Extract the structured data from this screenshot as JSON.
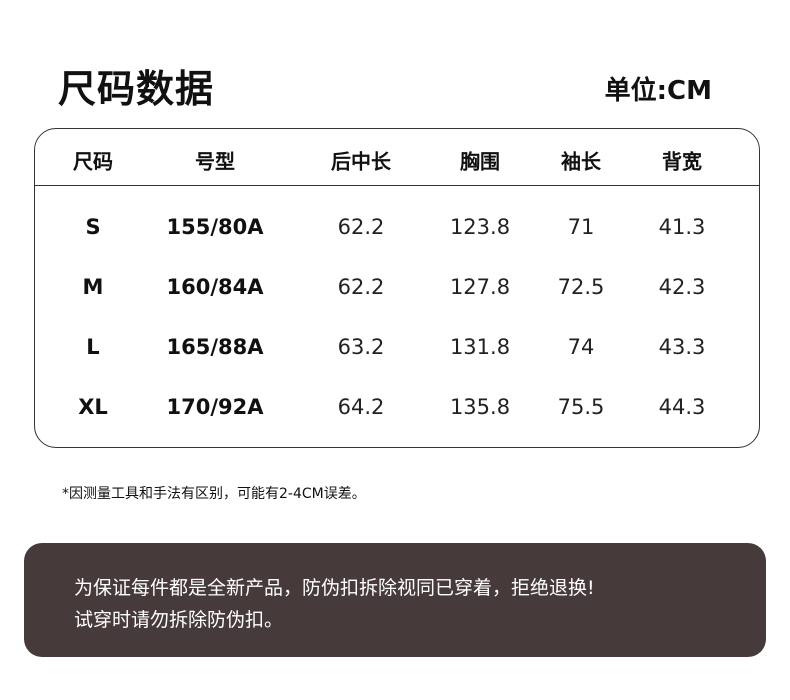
{
  "title": "尺码数据",
  "unit": "单位:CM",
  "table": {
    "headers": [
      "尺码",
      "号型",
      "后中长",
      "胸围",
      "袖长",
      "背宽"
    ],
    "rows": [
      [
        "S",
        "155/80A",
        "62.2",
        "123.8",
        "71",
        "41.3"
      ],
      [
        "M",
        "160/84A",
        "62.2",
        "127.8",
        "72.5",
        "42.3"
      ],
      [
        "L",
        "165/88A",
        "63.2",
        "131.8",
        "74",
        "43.3"
      ],
      [
        "XL",
        "170/92A",
        "64.2",
        "135.8",
        "75.5",
        "44.3"
      ]
    ]
  },
  "note": "*因测量工具和手法有区别，可能有2-4CM误差。",
  "notice": {
    "line1": "为保证每件都是全新产品，防伪扣拆除视同已穿着，拒绝退换!",
    "line2": "试穿时请勿拆除防伪扣。",
    "background": "#473a3b"
  }
}
